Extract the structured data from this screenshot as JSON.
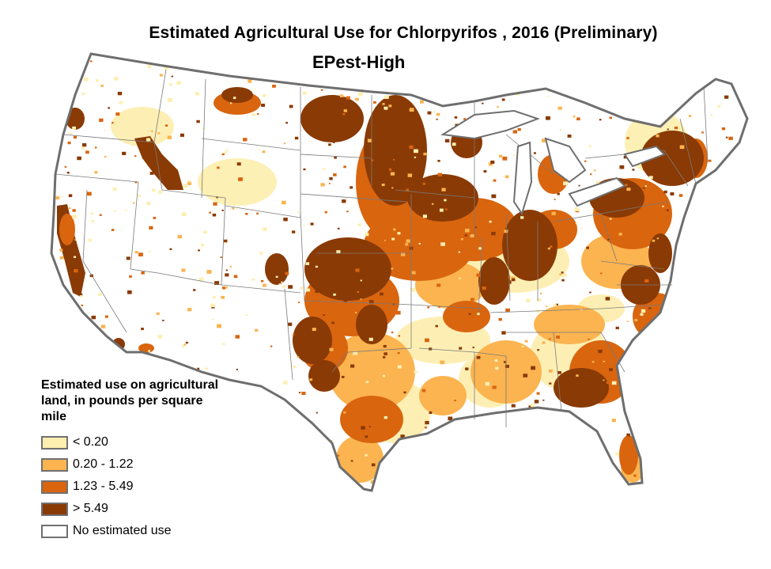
{
  "title": "Estimated Agricultural Use for Chlorpyrifos , 2016 (Preliminary)",
  "subtitle": "EPest-High",
  "legend": {
    "title": "Estimated use on agricultural land, in pounds per square mile",
    "items": [
      {
        "label": "< 0.20",
        "color": "#FDEFB0"
      },
      {
        "label": "0.20 - 1.22",
        "color": "#FBB450"
      },
      {
        "label": "1.23 - 5.49",
        "color": "#D9650F"
      },
      {
        "label": "> 5.49",
        "color": "#8A3A04"
      },
      {
        "label": "No estimated use",
        "color": "#FFFFFF"
      }
    ]
  },
  "colors": {
    "state_border": "#7A7A7A",
    "coastline": "#6E6E6E",
    "background": "#FFFFFF"
  }
}
